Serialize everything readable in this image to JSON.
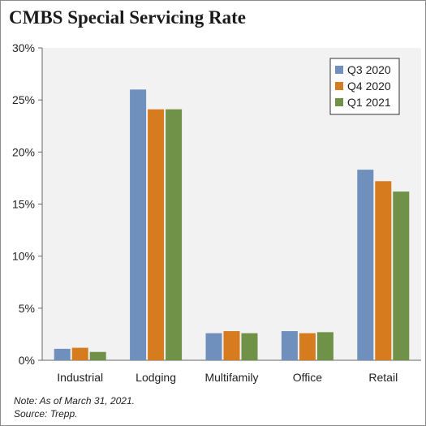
{
  "title": "CMBS Special Servicing Rate",
  "notes": {
    "note": "Note: As of March 31, 2021.",
    "source": "Source: Trepp."
  },
  "colors": {
    "plot_background": "#f2f2f2",
    "q3_2020": "#6f8fbd",
    "q4_2020": "#d67b1e",
    "q1_2021": "#6f9148"
  },
  "chart_data": {
    "type": "bar",
    "title": "CMBS Special Servicing Rate",
    "xlabel": "",
    "ylabel": "",
    "categories": [
      "Industrial",
      "Lodging",
      "Multifamily",
      "Office",
      "Retail"
    ],
    "series": [
      {
        "name": "Q3 2020",
        "values": [
          1.1,
          26.0,
          2.6,
          2.8,
          18.3
        ]
      },
      {
        "name": "Q4 2020",
        "values": [
          1.2,
          24.1,
          2.8,
          2.6,
          17.2
        ]
      },
      {
        "name": "Q1 2021",
        "values": [
          0.8,
          24.1,
          2.6,
          2.7,
          16.2
        ]
      }
    ],
    "ylim": [
      0,
      30
    ],
    "yticks": [
      "0%",
      "5%",
      "10%",
      "15%",
      "20%",
      "25%",
      "30%"
    ],
    "grid": false,
    "legend": "top-right"
  }
}
